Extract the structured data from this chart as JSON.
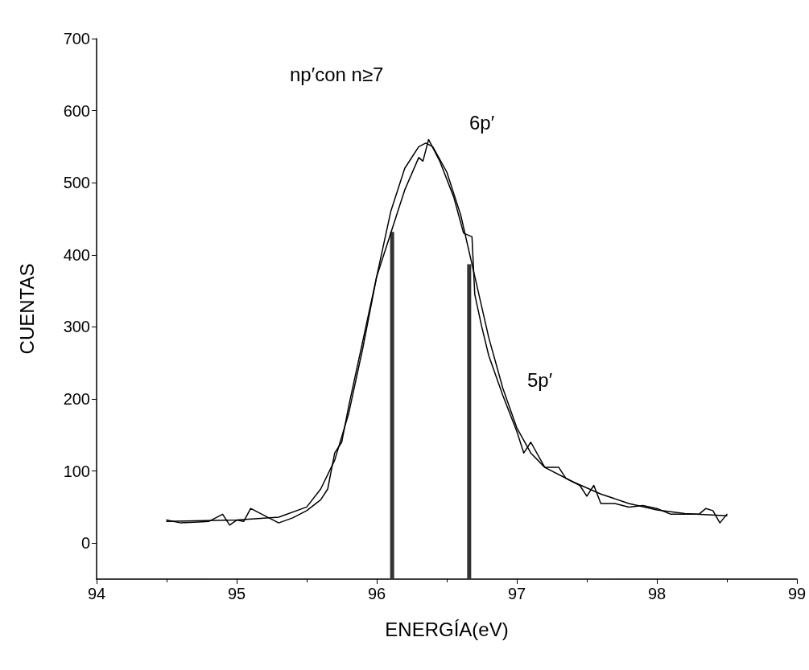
{
  "chart_data": {
    "type": "line",
    "xlabel": "ENERGÍA(eV)",
    "ylabel": "CUENTAS",
    "xlim": [
      94,
      99
    ],
    "xticks": [
      94,
      95,
      96,
      97,
      98,
      99
    ],
    "ylim": [
      -50,
      700
    ],
    "yticks": [
      0,
      100,
      200,
      300,
      400,
      500,
      600,
      700
    ],
    "grid": false,
    "marker": "none",
    "line_style": "solid",
    "series": [
      {
        "color": "#000000",
        "x": [
          94.5,
          94.6,
          94.7,
          94.8,
          94.9,
          94.95,
          95.0,
          95.05,
          95.1,
          95.2,
          95.3,
          95.4,
          95.5,
          95.6,
          95.65,
          95.7,
          95.75,
          95.8,
          95.9,
          96.0,
          96.1,
          96.2,
          96.3,
          96.33,
          96.37,
          96.45,
          96.55,
          96.62,
          96.68,
          96.7,
          96.75,
          96.8,
          96.9,
          97.0,
          97.05,
          97.1,
          97.2,
          97.3,
          97.35,
          97.45,
          97.5,
          97.55,
          97.6,
          97.7,
          97.8,
          97.9,
          98.0,
          98.1,
          98.2,
          98.3,
          98.35,
          98.4,
          98.45,
          98.5
        ],
        "values": [
          32,
          28,
          29,
          30,
          40,
          25,
          32,
          30,
          48,
          38,
          28,
          35,
          45,
          60,
          75,
          125,
          140,
          190,
          280,
          370,
          430,
          490,
          535,
          530,
          560,
          530,
          480,
          430,
          425,
          345,
          300,
          260,
          205,
          155,
          125,
          140,
          105,
          105,
          90,
          80,
          65,
          80,
          55,
          55,
          50,
          52,
          48,
          40,
          40,
          40,
          48,
          45,
          28,
          40
        ]
      },
      {
        "color": "#000000",
        "x": [
          94.5,
          95.0,
          95.3,
          95.5,
          95.6,
          95.7,
          95.8,
          95.9,
          96.0,
          96.1,
          96.2,
          96.3,
          96.35,
          96.4,
          96.5,
          96.6,
          96.7,
          96.8,
          96.9,
          97.0,
          97.1,
          97.2,
          97.4,
          97.6,
          97.8,
          98.0,
          98.2,
          98.5
        ],
        "values": [
          30,
          32,
          36,
          50,
          75,
          115,
          180,
          270,
          370,
          460,
          520,
          550,
          555,
          550,
          515,
          455,
          370,
          285,
          215,
          160,
          125,
          105,
          85,
          68,
          55,
          46,
          41,
          38
        ]
      },
      {
        "type": "bar",
        "color": "#333333",
        "x": [
          96.11,
          96.66
        ],
        "base": [
          -50,
          -50
        ],
        "values": [
          482,
          437
        ]
      }
    ],
    "annotations": [
      "np′con n≥7",
      "6p′",
      "5p′"
    ]
  }
}
